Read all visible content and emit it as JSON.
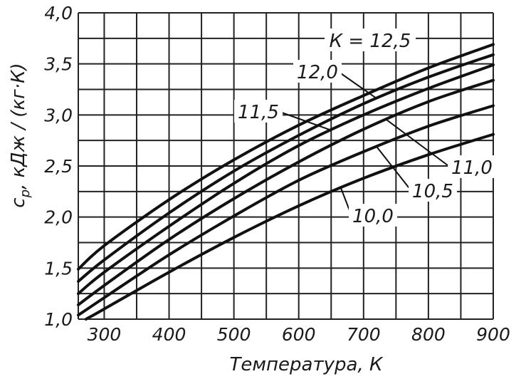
{
  "chart_data": {
    "type": "line",
    "title": "",
    "xlabel": "Температура, К",
    "ylabel": "c_p, кДж / (кг·К)",
    "ylabel_parts": {
      "symbol": "c",
      "sub": "p",
      "units": ", кДж / (кг·К)"
    },
    "xlim": [
      260,
      900
    ],
    "ylim": [
      1.0,
      4.0
    ],
    "x_ticks": [
      300,
      400,
      500,
      600,
      700,
      800,
      900
    ],
    "x_tick_labels": [
      "300",
      "400",
      "500",
      "600",
      "700",
      "800",
      "900"
    ],
    "y_ticks": [
      1.0,
      1.5,
      2.0,
      2.5,
      3.0,
      3.5,
      4.0
    ],
    "y_tick_labels": [
      "1,0",
      "1,5",
      "2,0",
      "2,5",
      "3,0",
      "3,5",
      "4,0"
    ],
    "grid": true,
    "series": [
      {
        "name": "К = 12,5",
        "label": "К = 12,5",
        "x": [
          260,
          300,
          400,
          500,
          600,
          700,
          800,
          900
        ],
        "y": [
          1.49,
          1.72,
          2.17,
          2.56,
          2.9,
          3.19,
          3.46,
          3.69
        ]
      },
      {
        "name": "12,0",
        "label": "12,0",
        "x": [
          260,
          300,
          400,
          500,
          600,
          700,
          800,
          900
        ],
        "y": [
          1.37,
          1.58,
          2.04,
          2.45,
          2.8,
          3.11,
          3.37,
          3.59
        ]
      },
      {
        "name": "11,5",
        "label": "11,5",
        "x": [
          260,
          300,
          400,
          500,
          600,
          700,
          800,
          900
        ],
        "y": [
          1.25,
          1.46,
          1.91,
          2.33,
          2.7,
          3.0,
          3.26,
          3.49
        ]
      },
      {
        "name": "11,0",
        "label": "11,0",
        "x": [
          260,
          300,
          400,
          500,
          600,
          700,
          800,
          900
        ],
        "y": [
          1.14,
          1.33,
          1.78,
          2.18,
          2.54,
          2.86,
          3.13,
          3.34
        ]
      },
      {
        "name": "10,5",
        "label": "10,5",
        "x": [
          260,
          300,
          400,
          500,
          600,
          700,
          800,
          900
        ],
        "y": [
          1.04,
          1.21,
          1.63,
          2.01,
          2.36,
          2.64,
          2.89,
          3.09
        ]
      },
      {
        "name": "10,0",
        "label": "10,0",
        "x": [
          272,
          300,
          400,
          500,
          600,
          700,
          800,
          900
        ],
        "y": [
          1.0,
          1.1,
          1.46,
          1.8,
          2.11,
          2.38,
          2.61,
          2.81
        ]
      }
    ]
  }
}
